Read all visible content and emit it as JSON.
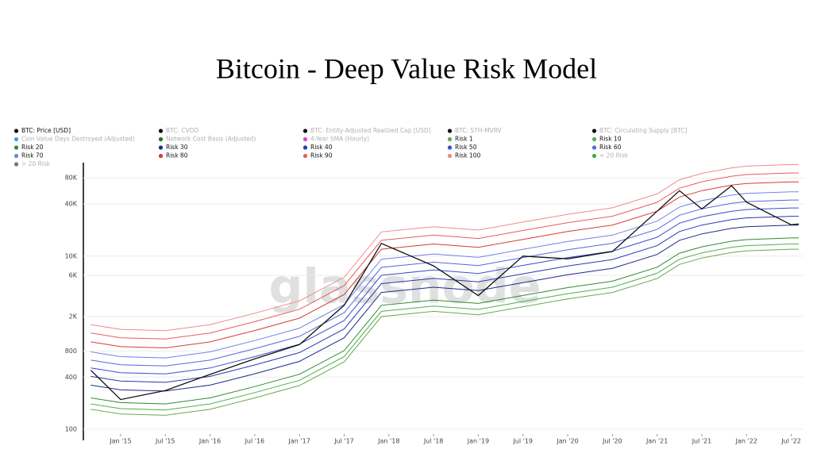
{
  "chart_data": {
    "type": "line",
    "title": "Bitcoin - Deep Value Risk Model",
    "watermark": "glassnode",
    "yscale": "log",
    "grid": true,
    "legend": "top-left",
    "x": [
      "2014-09",
      "2015-01",
      "2015-07",
      "2016-01",
      "2016-07",
      "2017-01",
      "2017-07",
      "2017-12",
      "2018-07",
      "2019-01",
      "2019-07",
      "2020-01",
      "2020-07",
      "2021-01",
      "2021-04",
      "2021-07",
      "2021-11",
      "2022-01",
      "2022-07",
      "2022-08"
    ],
    "xlim": [
      "2014-08",
      "2022-08"
    ],
    "xticks": [
      {
        "value": "2015-01",
        "label": "Jan '15"
      },
      {
        "value": "2015-07",
        "label": "Jul '15"
      },
      {
        "value": "2016-01",
        "label": "Jan '16"
      },
      {
        "value": "2016-07",
        "label": "Jul '16"
      },
      {
        "value": "2017-01",
        "label": "Jan '17"
      },
      {
        "value": "2017-07",
        "label": "Jul '17"
      },
      {
        "value": "2018-01",
        "label": "Jan '18"
      },
      {
        "value": "2018-07",
        "label": "Jul '18"
      },
      {
        "value": "2019-01",
        "label": "Jan '19"
      },
      {
        "value": "2019-07",
        "label": "Jul '19"
      },
      {
        "value": "2020-01",
        "label": "Jan '20"
      },
      {
        "value": "2020-07",
        "label": "Jul '20"
      },
      {
        "value": "2021-01",
        "label": "Jan '21"
      },
      {
        "value": "2021-07",
        "label": "Jul '21"
      },
      {
        "value": "2022-01",
        "label": "Jan '22"
      },
      {
        "value": "2022-07",
        "label": "Jul '22"
      }
    ],
    "ylim": [
      100,
      120000
    ],
    "yticks": [
      100,
      400,
      800,
      {
        "value": 2000,
        "label": "2K"
      },
      {
        "value": 6000,
        "label": "6K"
      },
      {
        "value": 10000,
        "label": "10K"
      },
      {
        "value": 40000,
        "label": "40K"
      },
      {
        "value": 80000,
        "label": "80K"
      }
    ],
    "series": [
      {
        "name": "BTC: Price [USD]",
        "color": "#111111",
        "active": true,
        "values": [
          480,
          220,
          280,
          430,
          650,
          950,
          2700,
          14000,
          7700,
          3500,
          10000,
          9300,
          11300,
          33000,
          57000,
          35000,
          65000,
          42000,
          23000,
          23500
        ]
      },
      {
        "name": "BTC: CVDD",
        "color": "#111111",
        "active": false
      },
      {
        "name": "BTC: Entity-Adjusted Realized Cap [USD]",
        "color": "#111111",
        "active": false
      },
      {
        "name": "BTC: STH-MVRV",
        "color": "#111111",
        "active": false
      },
      {
        "name": "BTC: Circulating Supply [BTC]",
        "color": "#111111",
        "active": false
      },
      {
        "name": "Coin Value Days Destroyed (Adjusted)",
        "color": "#3b9ce8",
        "active": false
      },
      {
        "name": "Network Cost Basis (Adjusted)",
        "color": "#1b7a1b",
        "active": false
      },
      {
        "name": "4-Year SMA (Hourly)",
        "color": "#e040e0",
        "active": false
      },
      {
        "name": "Risk 1",
        "color": "#6aa84f",
        "active": true,
        "values": [
          170,
          150,
          145,
          170,
          230,
          320,
          600,
          2000,
          2300,
          2100,
          2600,
          3200,
          3800,
          5500,
          8000,
          9500,
          11000,
          11500,
          12000,
          12000
        ]
      },
      {
        "name": "Risk 10",
        "color": "#4caf50",
        "active": true,
        "values": [
          196,
          173,
          167,
          196,
          265,
          368,
          690,
          2300,
          2650,
          2420,
          2990,
          3680,
          4370,
          6330,
          9200,
          10900,
          12650,
          13200,
          13800,
          13800
        ]
      },
      {
        "name": "Risk 20",
        "color": "#2e8b2e",
        "active": true,
        "values": [
          230,
          203,
          196,
          230,
          311,
          432,
          810,
          2700,
          3100,
          2840,
          3510,
          4320,
          5130,
          7430,
          10800,
          12800,
          14850,
          15500,
          16200,
          16200
        ]
      },
      {
        "name": "Risk 30",
        "color": "#1c2a8c",
        "active": true,
        "values": [
          323,
          285,
          276,
          323,
          437,
          608,
          1140,
          3800,
          4370,
          3990,
          4940,
          6080,
          7220,
          10450,
          15200,
          18050,
          20900,
          21850,
          22800,
          22800
        ]
      },
      {
        "name": "Risk 40",
        "color": "#2838b0",
        "active": true,
        "values": [
          408,
          360,
          348,
          408,
          552,
          768,
          1440,
          4800,
          5520,
          5040,
          6240,
          7680,
          9120,
          13200,
          19200,
          22800,
          26400,
          27600,
          28800,
          28800
        ]
      },
      {
        "name": "Risk 50",
        "color": "#3a4ccc",
        "active": true,
        "values": [
          510,
          450,
          435,
          510,
          690,
          960,
          1800,
          6000,
          6900,
          6300,
          7800,
          9600,
          11400,
          16500,
          24000,
          28500,
          33000,
          34500,
          36000,
          36000
        ]
      },
      {
        "name": "Risk 60",
        "color": "#5566dd",
        "active": true,
        "values": [
          629,
          555,
          537,
          629,
          851,
          1184,
          2220,
          7400,
          8510,
          7770,
          9620,
          11840,
          14060,
          20350,
          29600,
          35150,
          40700,
          42550,
          44400,
          44400
        ]
      },
      {
        "name": "Risk 70",
        "color": "#7282e6",
        "active": true,
        "values": [
          782,
          690,
          667,
          782,
          1058,
          1472,
          2760,
          9200,
          10580,
          9660,
          11960,
          14720,
          17480,
          25300,
          36800,
          43700,
          50600,
          52900,
          55200,
          55200
        ]
      },
      {
        "name": "Risk 80",
        "color": "#d63a3a",
        "active": true,
        "values": [
          1020,
          900,
          870,
          1020,
          1380,
          1920,
          3600,
          12000,
          13800,
          12600,
          15600,
          19200,
          22800,
          33000,
          48000,
          57000,
          66000,
          69000,
          72000,
          72000
        ]
      },
      {
        "name": "Risk 90",
        "color": "#e85c5c",
        "active": true,
        "values": [
          1292,
          1140,
          1102,
          1292,
          1748,
          2432,
          4560,
          15200,
          17480,
          15960,
          19760,
          24320,
          28880,
          41800,
          60800,
          72200,
          83600,
          87400,
          91200,
          91200
        ]
      },
      {
        "name": "Risk 100",
        "color": "#f08a8a",
        "active": true,
        "values": [
          1615,
          1425,
          1378,
          1615,
          2185,
          3040,
          5700,
          19000,
          21850,
          19950,
          24700,
          30400,
          36100,
          52250,
          76000,
          90250,
          104500,
          109250,
          114000,
          114000
        ]
      },
      {
        "name": "< 20 Risk",
        "color": "#3cb043",
        "active": false
      },
      {
        "name": "> 20 Risk",
        "color": "#777777",
        "active": false
      }
    ]
  }
}
